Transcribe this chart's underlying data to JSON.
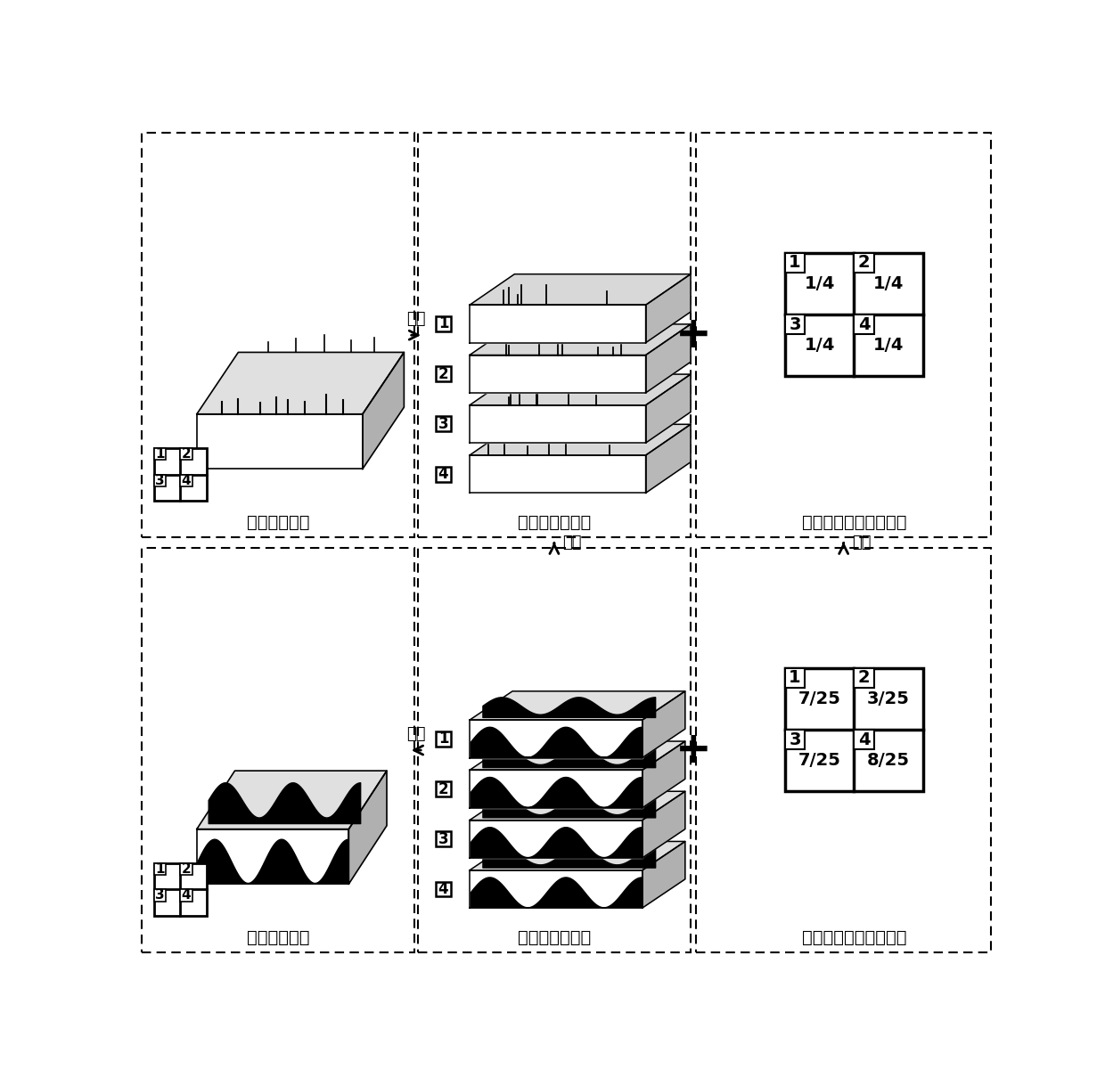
{
  "bg_color": "#ffffff",
  "top_left_label": "脉冲阵列信号",
  "top_mid_label": "脉冲序列信号集",
  "top_right_label": "脉冲序列信号空间权重",
  "bot_left_label": "脉冲阵列特征",
  "bot_mid_label": "脉冲序列特征集",
  "bot_right_label": "脉冲序列特征空间权重",
  "arrow_decompose": "分解",
  "arrow_filter": "滤波",
  "arrow_transform": "变换",
  "arrow_merge": "合并",
  "weight_top": [
    [
      "1",
      "1/4"
    ],
    [
      "2",
      "1/4"
    ],
    [
      "3",
      "1/4"
    ],
    [
      "4",
      "1/4"
    ]
  ],
  "weight_bot": [
    [
      "1",
      "7/25"
    ],
    [
      "2",
      "3/25"
    ],
    [
      "3",
      "7/25"
    ],
    [
      "4",
      "8/25"
    ]
  ]
}
